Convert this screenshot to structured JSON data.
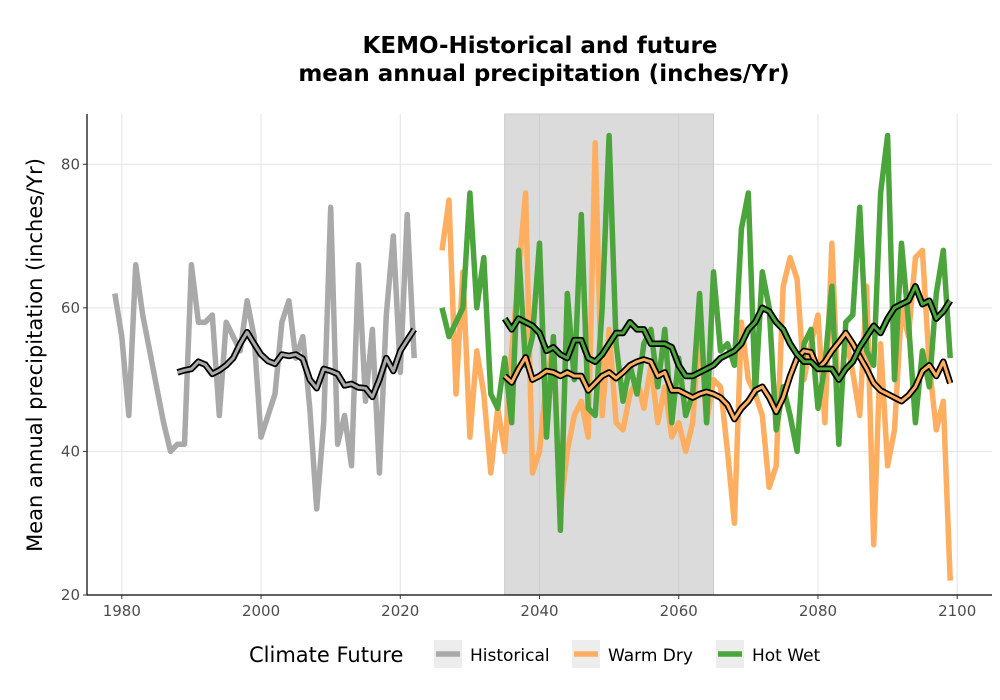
{
  "chart_data": {
    "type": "line",
    "title_line1": "KEMO-Historical and future",
    "title_line2": "mean annual precipitation (inches/Yr)",
    "xlabel": "",
    "ylabel": "Mean annual precipitation (inches/Yr)",
    "xlim": [
      1975,
      2105
    ],
    "ylim": [
      20,
      87
    ],
    "xticks": [
      1980,
      2000,
      2020,
      2040,
      2060,
      2080,
      2100
    ],
    "yticks": [
      20,
      40,
      60,
      80
    ],
    "grid": true,
    "shaded_period": [
      2035,
      2065
    ],
    "legend": {
      "title": "Climate Future",
      "placement": "bottom",
      "entries": [
        {
          "label": "Historical",
          "color": "#a9a9a9"
        },
        {
          "label": "Warm Dry",
          "color": "#fdae61"
        },
        {
          "label": "Hot Wet",
          "color": "#4ca43c"
        }
      ]
    },
    "series": [
      {
        "name": "Historical",
        "color": "#a9a9a9",
        "x": [
          1979,
          1980,
          1981,
          1982,
          1983,
          1984,
          1985,
          1986,
          1987,
          1988,
          1989,
          1990,
          1991,
          1992,
          1993,
          1994,
          1995,
          1996,
          1997,
          1998,
          1999,
          2000,
          2001,
          2002,
          2003,
          2004,
          2005,
          2006,
          2007,
          2008,
          2009,
          2010,
          2011,
          2012,
          2013,
          2014,
          2015,
          2016,
          2017,
          2018,
          2019,
          2020,
          2021,
          2022
        ],
        "values": [
          62,
          56,
          45,
          66,
          59,
          54,
          49,
          44,
          40,
          41,
          41,
          66,
          58,
          58,
          59,
          45,
          58,
          56,
          54,
          61,
          56,
          42,
          45,
          48,
          58,
          61,
          53,
          56,
          46,
          32,
          44,
          74,
          41,
          45,
          38,
          66,
          47,
          57,
          37,
          59,
          70,
          51,
          73,
          53
        ],
        "rolling": {
          "x": [
            1988,
            1989,
            1990,
            1991,
            1992,
            1993,
            1994,
            1995,
            1996,
            1997,
            1998,
            1999,
            2000,
            2001,
            2002,
            2003,
            2004,
            2005,
            2006,
            2007,
            2008,
            2009,
            2010,
            2011,
            2012,
            2013,
            2014,
            2015,
            2016,
            2017,
            2018,
            2019,
            2020,
            2021,
            2022
          ],
          "values": [
            51.0,
            51.3,
            51.5,
            52.5,
            52.1,
            50.8,
            51.3,
            52.0,
            53.0,
            55.0,
            56.6,
            55.0,
            53.5,
            52.6,
            52.2,
            53.5,
            53.3,
            53.5,
            52.9,
            50.0,
            48.8,
            51.5,
            51.2,
            50.8,
            49.2,
            49.4,
            48.9,
            48.8,
            47.6,
            50.0,
            53.0,
            51.2,
            54.0,
            55.5,
            57.0
          ]
        }
      },
      {
        "name": "Warm Dry",
        "color": "#fdae61",
        "x": [
          2026,
          2027,
          2028,
          2029,
          2030,
          2031,
          2032,
          2033,
          2034,
          2035,
          2036,
          2037,
          2038,
          2039,
          2040,
          2041,
          2042,
          2043,
          2044,
          2045,
          2046,
          2047,
          2048,
          2049,
          2050,
          2051,
          2052,
          2053,
          2054,
          2055,
          2056,
          2057,
          2058,
          2059,
          2060,
          2061,
          2062,
          2063,
          2064,
          2065,
          2066,
          2067,
          2068,
          2069,
          2070,
          2071,
          2072,
          2073,
          2074,
          2075,
          2076,
          2077,
          2078,
          2079,
          2080,
          2081,
          2082,
          2083,
          2084,
          2085,
          2086,
          2087,
          2088,
          2089,
          2090,
          2091,
          2092,
          2093,
          2094,
          2095,
          2096,
          2097,
          2098,
          2099
        ],
        "values": [
          68,
          75,
          48,
          65,
          42,
          54,
          48,
          37,
          46,
          40,
          54,
          65,
          76,
          37,
          40,
          50,
          55,
          32,
          40,
          45,
          47,
          42,
          83,
          45,
          57,
          44,
          43,
          48,
          50,
          46,
          52,
          44,
          49,
          42,
          44,
          40,
          44,
          58,
          44,
          50,
          49,
          40,
          30,
          58,
          50,
          48,
          45,
          35,
          38,
          63,
          67,
          64,
          50,
          55,
          59,
          44,
          69,
          45,
          56,
          51,
          45,
          63,
          27,
          55,
          38,
          43,
          60,
          56,
          67,
          68,
          52,
          43,
          47,
          22
        ],
        "rolling": {
          "x": [
            2035,
            2036,
            2037,
            2038,
            2039,
            2040,
            2041,
            2042,
            2043,
            2044,
            2045,
            2046,
            2047,
            2048,
            2049,
            2050,
            2051,
            2052,
            2053,
            2054,
            2055,
            2056,
            2057,
            2058,
            2059,
            2060,
            2061,
            2062,
            2063,
            2064,
            2065,
            2066,
            2067,
            2068,
            2069,
            2070,
            2071,
            2072,
            2073,
            2074,
            2075,
            2076,
            2077,
            2078,
            2079,
            2080,
            2081,
            2082,
            2083,
            2084,
            2085,
            2086,
            2087,
            2088,
            2089,
            2090,
            2091,
            2092,
            2093,
            2094,
            2095,
            2096,
            2097,
            2098,
            2099
          ],
          "values": [
            50.5,
            49.6,
            51.5,
            53.1,
            50.0,
            50.5,
            51.2,
            51.0,
            50.5,
            51.0,
            50.5,
            50.5,
            48.5,
            49.5,
            50.5,
            51.0,
            50.2,
            51.0,
            52.0,
            52.5,
            52.8,
            52.5,
            50.5,
            51.0,
            48.5,
            48.5,
            48.0,
            47.5,
            48.0,
            48.3,
            48.0,
            47.5,
            46.5,
            44.5,
            46.0,
            47.0,
            48.5,
            49.0,
            47.5,
            45.5,
            47.5,
            50.5,
            53.0,
            54.0,
            53.8,
            51.5,
            52.5,
            54.0,
            55.2,
            56.5,
            55.0,
            53.2,
            51.5,
            49.5,
            48.5,
            48.0,
            47.5,
            47.0,
            47.8,
            49.0,
            51.2,
            52.0,
            50.5,
            52.5,
            49.5
          ]
        }
      },
      {
        "name": "Hot Wet",
        "color": "#4ca43c",
        "x": [
          2026,
          2027,
          2028,
          2029,
          2030,
          2031,
          2032,
          2033,
          2034,
          2035,
          2036,
          2037,
          2038,
          2039,
          2040,
          2041,
          2042,
          2043,
          2044,
          2045,
          2046,
          2047,
          2048,
          2049,
          2050,
          2051,
          2052,
          2053,
          2054,
          2055,
          2056,
          2057,
          2058,
          2059,
          2060,
          2061,
          2062,
          2063,
          2064,
          2065,
          2066,
          2067,
          2068,
          2069,
          2070,
          2071,
          2072,
          2073,
          2074,
          2075,
          2076,
          2077,
          2078,
          2079,
          2080,
          2081,
          2082,
          2083,
          2084,
          2085,
          2086,
          2087,
          2088,
          2089,
          2090,
          2091,
          2092,
          2093,
          2094,
          2095,
          2096,
          2097,
          2098,
          2099
        ],
        "values": [
          60,
          56,
          58,
          60,
          76,
          60,
          67,
          48,
          46,
          53,
          44,
          68,
          52,
          56,
          69,
          42,
          56,
          29,
          62,
          50,
          73,
          46,
          45,
          60,
          84,
          55,
          47,
          52,
          48,
          55,
          57,
          49,
          57,
          44,
          53,
          45,
          48,
          62,
          44,
          65,
          54,
          55,
          52,
          71,
          76,
          48,
          65,
          60,
          43,
          49,
          45,
          40,
          55,
          57,
          46,
          52,
          63,
          41,
          58,
          59,
          74,
          54,
          52,
          76,
          84,
          50,
          69,
          58,
          44,
          54,
          49,
          62,
          68,
          53
        ],
        "rolling": {
          "x": [
            2035,
            2036,
            2037,
            2038,
            2039,
            2040,
            2041,
            2042,
            2043,
            2044,
            2045,
            2046,
            2047,
            2048,
            2049,
            2050,
            2051,
            2052,
            2053,
            2054,
            2055,
            2056,
            2057,
            2058,
            2059,
            2060,
            2061,
            2062,
            2063,
            2064,
            2065,
            2066,
            2067,
            2068,
            2069,
            2070,
            2071,
            2072,
            2073,
            2074,
            2075,
            2076,
            2077,
            2078,
            2079,
            2080,
            2081,
            2082,
            2083,
            2084,
            2085,
            2086,
            2087,
            2088,
            2089,
            2090,
            2091,
            2092,
            2093,
            2094,
            2095,
            2096,
            2097,
            2098,
            2099
          ],
          "values": [
            58.5,
            57.0,
            58.5,
            58.0,
            57.5,
            56.5,
            54.0,
            54.5,
            53.5,
            53.0,
            55.5,
            55.5,
            53.0,
            52.5,
            53.5,
            55.0,
            56.5,
            56.5,
            58.0,
            57.0,
            57.0,
            55.0,
            55.0,
            55.0,
            54.5,
            52.0,
            50.5,
            50.5,
            51.0,
            51.5,
            52.0,
            53.0,
            53.5,
            54.0,
            55.0,
            57.0,
            58.0,
            60.0,
            59.5,
            58.0,
            57.0,
            55.0,
            53.5,
            52.5,
            52.5,
            51.5,
            51.5,
            51.5,
            50.0,
            51.5,
            52.5,
            54.5,
            56.0,
            57.5,
            56.5,
            58.5,
            60.0,
            60.5,
            61.0,
            63.0,
            60.5,
            61.0,
            58.5,
            59.5,
            61.0
          ]
        }
      }
    ]
  }
}
